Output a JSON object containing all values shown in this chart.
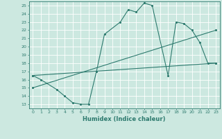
{
  "title": "",
  "xlabel": "Humidex (Indice chaleur)",
  "ylabel": "",
  "bg_color": "#cce8e0",
  "line_color": "#2d7a6e",
  "grid_color": "#ffffff",
  "xlim": [
    -0.5,
    23.5
  ],
  "ylim": [
    12.5,
    25.5
  ],
  "xticks": [
    0,
    1,
    2,
    3,
    4,
    5,
    6,
    7,
    8,
    9,
    10,
    11,
    12,
    13,
    14,
    15,
    16,
    17,
    18,
    19,
    20,
    21,
    22,
    23
  ],
  "yticks": [
    13,
    14,
    15,
    16,
    17,
    18,
    19,
    20,
    21,
    22,
    23,
    24,
    25
  ],
  "line1_x": [
    0,
    1,
    3,
    4,
    5,
    6,
    7,
    8,
    9,
    11,
    12,
    13,
    14,
    15,
    17,
    18,
    19,
    20,
    21,
    22,
    23
  ],
  "line1_y": [
    16.5,
    16.0,
    14.8,
    14.0,
    13.2,
    13.0,
    13.0,
    17.0,
    21.5,
    23.0,
    24.5,
    24.2,
    25.3,
    25.0,
    16.5,
    23.0,
    22.8,
    22.0,
    20.5,
    18.0,
    18.0
  ],
  "line2_x": [
    0,
    23
  ],
  "line2_y": [
    16.5,
    18.0
  ],
  "line3_x": [
    0,
    23
  ],
  "line3_y": [
    15.0,
    22.0
  ],
  "figsize": [
    3.2,
    2.0
  ],
  "dpi": 100
}
